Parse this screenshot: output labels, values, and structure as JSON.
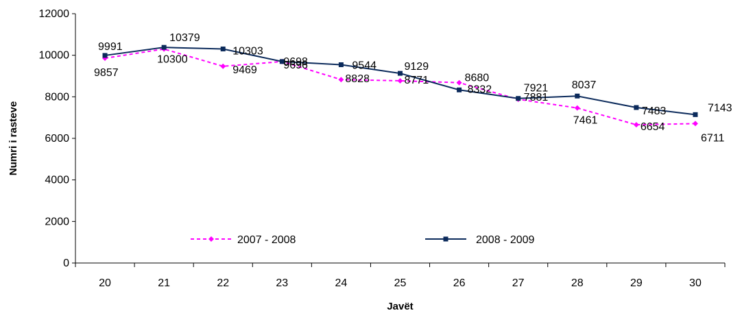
{
  "chart_data": {
    "type": "line",
    "categories": [
      "20",
      "21",
      "22",
      "23",
      "24",
      "25",
      "26",
      "27",
      "28",
      "29",
      "30"
    ],
    "series": [
      {
        "name": "2007 - 2008",
        "values": [
          9857,
          10300,
          9469,
          9696,
          8828,
          8771,
          8680,
          7881,
          7461,
          6654,
          6711
        ],
        "color": "#ff00ff",
        "style": "dashed",
        "marker": "diamond"
      },
      {
        "name": "2008 - 2009",
        "values": [
          9991,
          10379,
          10303,
          9698,
          9544,
          9129,
          8332,
          7921,
          8037,
          7483,
          7143
        ],
        "color": "#0b2a5b",
        "style": "solid",
        "marker": "square"
      }
    ],
    "xlabel": "Javët",
    "ylabel": "Numri i rasteve",
    "ylim": [
      0,
      12000
    ],
    "yticks": [
      "0",
      "2000",
      "4000",
      "6000",
      "8000",
      "10000",
      "12000"
    ],
    "grid": false,
    "legend_position": "bottom-inside"
  }
}
